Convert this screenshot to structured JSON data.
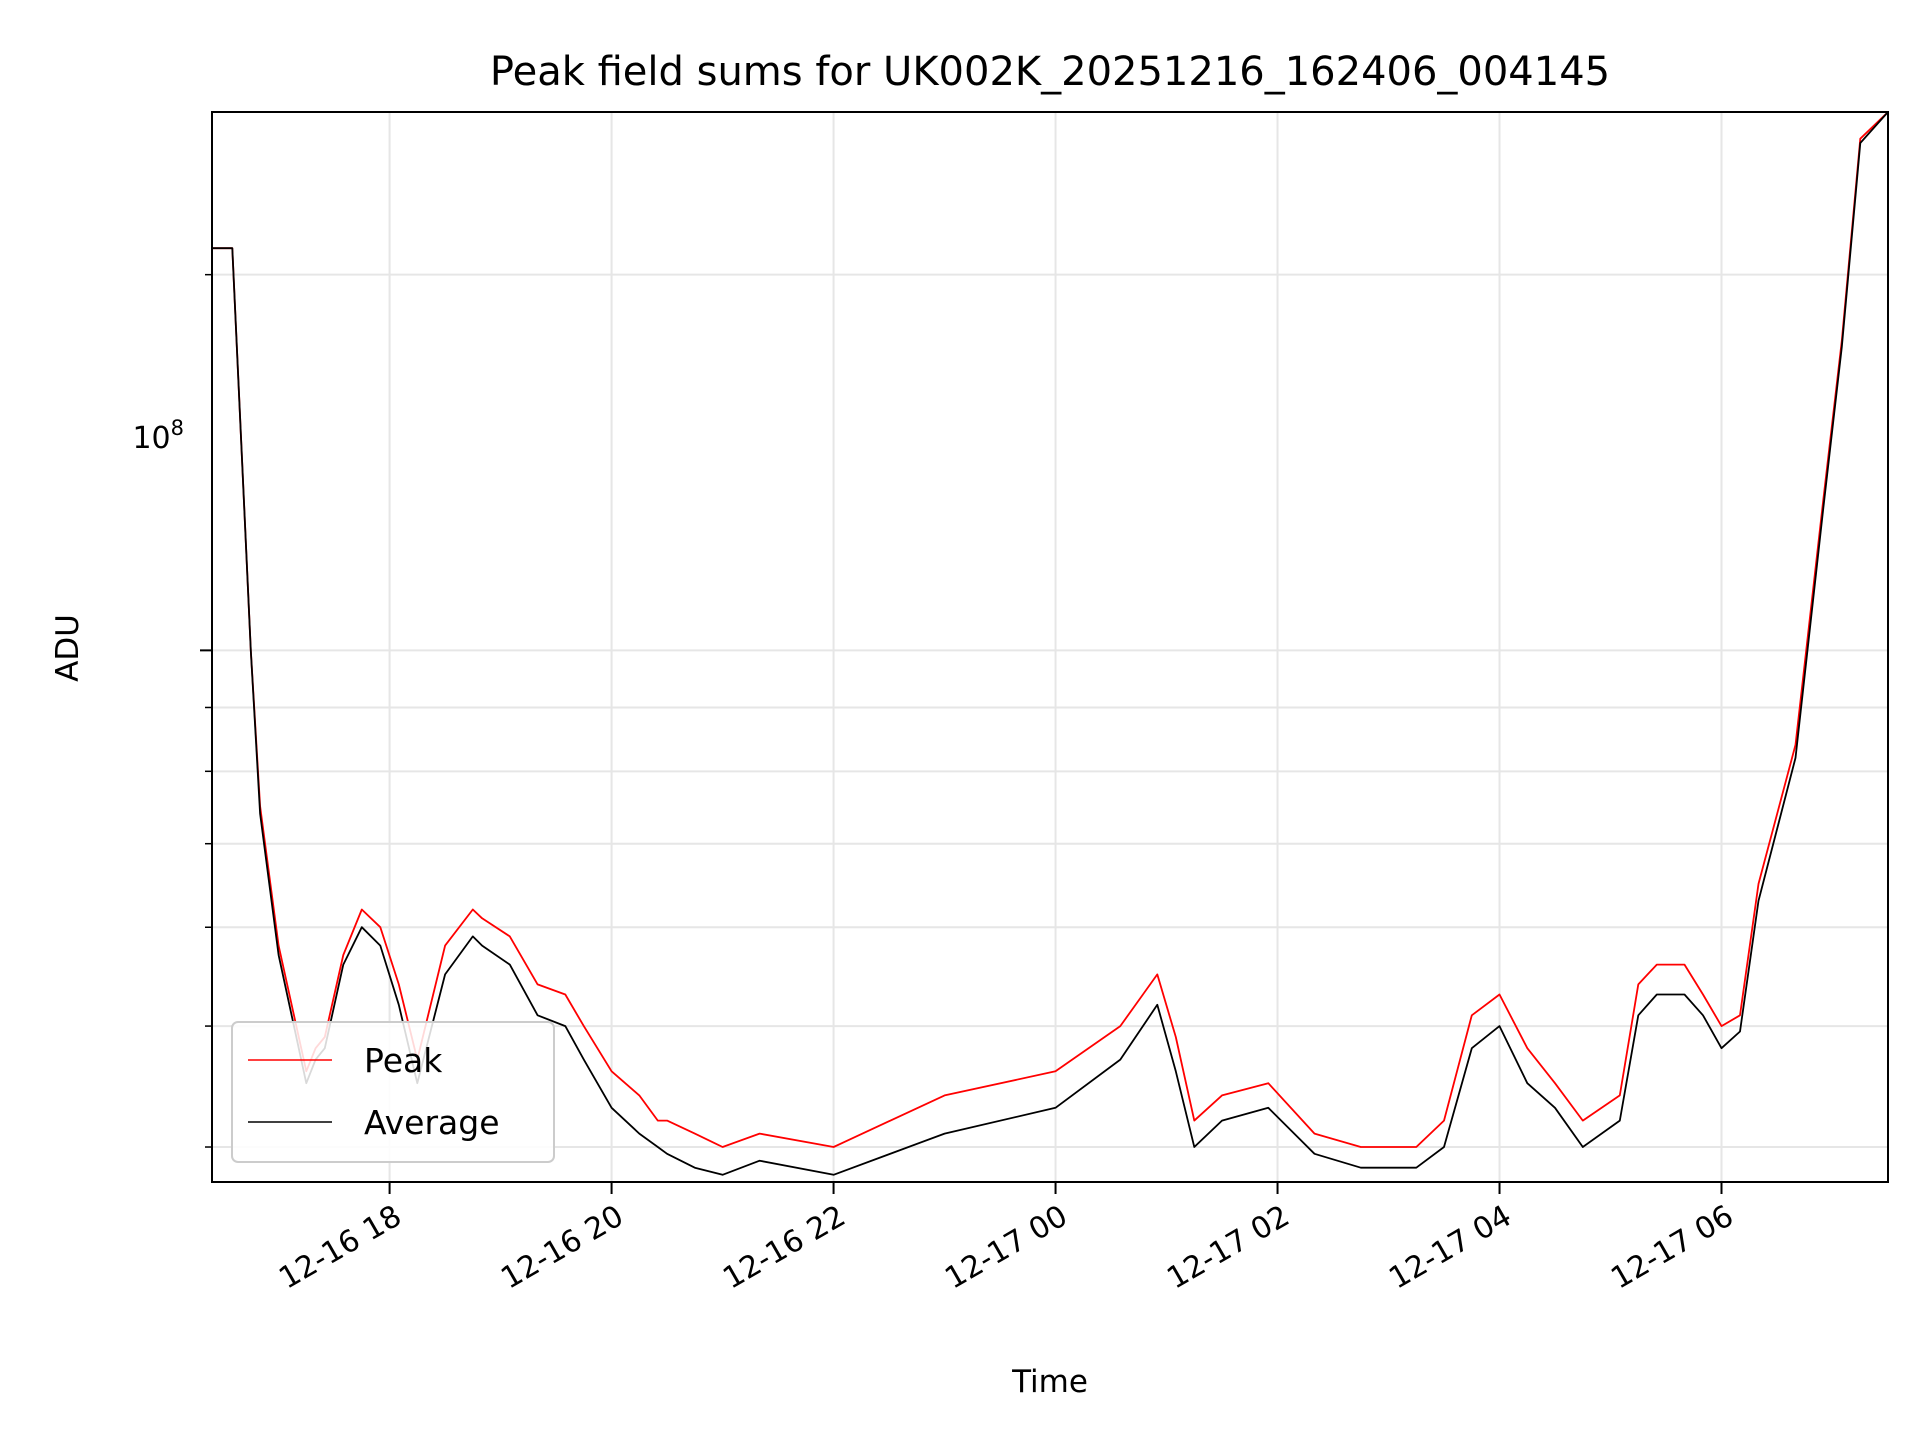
{
  "chart_data": {
    "type": "line",
    "title": "Peak field sums for UK002K_20251216_162406_004145",
    "xlabel": "Time",
    "ylabel": "ADU",
    "y_scale": "log",
    "y_tick_label": {
      "base": "10",
      "exp": "8"
    },
    "xlim": [
      "2025-12-16 16:24",
      "2025-12-17 07:30"
    ],
    "ylim": [
      37500000.0,
      270000000.0
    ],
    "grid": true,
    "legend_position": "lower-left",
    "x_ticks": [
      "2025-12-16 18:00",
      "2025-12-16 20:00",
      "2025-12-16 22:00",
      "2025-12-17 00:00",
      "2025-12-17 02:00",
      "2025-12-17 04:00",
      "2025-12-17 06:00"
    ],
    "x_tick_labels": [
      "12-16 18",
      "12-16 20",
      "12-16 22",
      "12-17 00",
      "12-17 02",
      "12-17 04",
      "12-17 06"
    ],
    "series": [
      {
        "name": "Average",
        "color": "#000000",
        "x": [
          "2025-12-16 16:24",
          "2025-12-16 16:35",
          "2025-12-16 16:45",
          "2025-12-16 16:50",
          "2025-12-16 17:00",
          "2025-12-16 17:15",
          "2025-12-16 17:20",
          "2025-12-16 17:25",
          "2025-12-16 17:35",
          "2025-12-16 17:45",
          "2025-12-16 17:55",
          "2025-12-16 18:05",
          "2025-12-16 18:15",
          "2025-12-16 18:30",
          "2025-12-16 18:45",
          "2025-12-16 18:50",
          "2025-12-16 19:05",
          "2025-12-16 19:20",
          "2025-12-16 19:35",
          "2025-12-16 19:45",
          "2025-12-16 20:00",
          "2025-12-16 20:15",
          "2025-12-16 20:25",
          "2025-12-16 20:30",
          "2025-12-16 20:45",
          "2025-12-16 21:00",
          "2025-12-16 21:20",
          "2025-12-16 22:00",
          "2025-12-16 23:00",
          "2025-12-17 00:00",
          "2025-12-17 00:35",
          "2025-12-17 00:55",
          "2025-12-17 01:05",
          "2025-12-17 01:15",
          "2025-12-17 01:30",
          "2025-12-17 01:55",
          "2025-12-17 02:20",
          "2025-12-17 02:45",
          "2025-12-17 03:00",
          "2025-12-17 03:15",
          "2025-12-17 03:30",
          "2025-12-17 03:45",
          "2025-12-17 04:00",
          "2025-12-17 04:15",
          "2025-12-17 04:30",
          "2025-12-17 04:45",
          "2025-12-17 05:05",
          "2025-12-17 05:15",
          "2025-12-17 05:25",
          "2025-12-17 05:40",
          "2025-12-17 05:50",
          "2025-12-17 06:00",
          "2025-12-17 06:10",
          "2025-12-17 06:20",
          "2025-12-17 06:40",
          "2025-12-17 06:55",
          "2025-12-17 07:05",
          "2025-12-17 07:15",
          "2025-12-17 07:30"
        ],
        "values": [
          210000000.0,
          210000000.0,
          100000000.0,
          74000000.0,
          57000000.0,
          45000000.0,
          47000000.0,
          48000000.0,
          56000000.0,
          60000000.0,
          58000000.0,
          52000000.0,
          45000000.0,
          55000000.0,
          59000000.0,
          58000000.0,
          56000000.0,
          51000000.0,
          50000000.0,
          47000000.0,
          43000000.0,
          41000000.0,
          40000000.0,
          39500000.0,
          38500000.0,
          38000000.0,
          39000000.0,
          38000000.0,
          41000000.0,
          43000000.0,
          47000000.0,
          52000000.0,
          46000000.0,
          40000000.0,
          42000000.0,
          43000000.0,
          39500000.0,
          38500000.0,
          38500000.0,
          38500000.0,
          40000000.0,
          48000000.0,
          50000000.0,
          45000000.0,
          43000000.0,
          40000000.0,
          42000000.0,
          51000000.0,
          53000000.0,
          53000000.0,
          51000000.0,
          48000000.0,
          49500000.0,
          63000000.0,
          82000000.0,
          130000000.0,
          175000000.0,
          255000000.0,
          270000000.0
        ]
      },
      {
        "name": "Peak",
        "color": "#ff0000",
        "x": [
          "2025-12-16 16:24",
          "2025-12-16 16:35",
          "2025-12-16 16:45",
          "2025-12-16 16:50",
          "2025-12-16 17:00",
          "2025-12-16 17:15",
          "2025-12-16 17:20",
          "2025-12-16 17:25",
          "2025-12-16 17:35",
          "2025-12-16 17:45",
          "2025-12-16 17:55",
          "2025-12-16 18:05",
          "2025-12-16 18:15",
          "2025-12-16 18:30",
          "2025-12-16 18:45",
          "2025-12-16 18:50",
          "2025-12-16 19:05",
          "2025-12-16 19:20",
          "2025-12-16 19:35",
          "2025-12-16 19:45",
          "2025-12-16 20:00",
          "2025-12-16 20:15",
          "2025-12-16 20:25",
          "2025-12-16 20:30",
          "2025-12-16 20:45",
          "2025-12-16 21:00",
          "2025-12-16 21:20",
          "2025-12-16 22:00",
          "2025-12-16 23:00",
          "2025-12-17 00:00",
          "2025-12-17 00:35",
          "2025-12-17 00:55",
          "2025-12-17 01:05",
          "2025-12-17 01:15",
          "2025-12-17 01:30",
          "2025-12-17 01:55",
          "2025-12-17 02:20",
          "2025-12-17 02:45",
          "2025-12-17 03:00",
          "2025-12-17 03:15",
          "2025-12-17 03:30",
          "2025-12-17 03:45",
          "2025-12-17 04:00",
          "2025-12-17 04:15",
          "2025-12-17 04:30",
          "2025-12-17 04:45",
          "2025-12-17 05:05",
          "2025-12-17 05:15",
          "2025-12-17 05:25",
          "2025-12-17 05:40",
          "2025-12-17 05:50",
          "2025-12-17 06:00",
          "2025-12-17 06:10",
          "2025-12-17 06:20",
          "2025-12-17 06:40",
          "2025-12-17 06:55",
          "2025-12-17 07:05",
          "2025-12-17 07:15",
          "2025-12-17 07:30"
        ],
        "values": [
          210000000.0,
          210000000.0,
          100000000.0,
          75000000.0,
          58000000.0,
          46000000.0,
          48000000.0,
          49000000.0,
          57000000.0,
          62000000.0,
          60000000.0,
          54000000.0,
          47000000.0,
          58000000.0,
          62000000.0,
          61000000.0,
          59000000.0,
          54000000.0,
          53000000.0,
          50000000.0,
          46000000.0,
          44000000.0,
          42000000.0,
          42000000.0,
          41000000.0,
          40000000.0,
          41000000.0,
          40000000.0,
          44000000.0,
          46000000.0,
          50000000.0,
          55000000.0,
          49000000.0,
          42000000.0,
          44000000.0,
          45000000.0,
          41000000.0,
          40000000.0,
          40000000.0,
          40000000.0,
          42000000.0,
          51000000.0,
          53000000.0,
          48000000.0,
          45000000.0,
          42000000.0,
          44000000.0,
          54000000.0,
          56000000.0,
          56000000.0,
          53000000.0,
          50000000.0,
          51000000.0,
          65000000.0,
          84000000.0,
          132000000.0,
          177000000.0,
          257000000.0,
          270000000.0
        ]
      }
    ]
  }
}
